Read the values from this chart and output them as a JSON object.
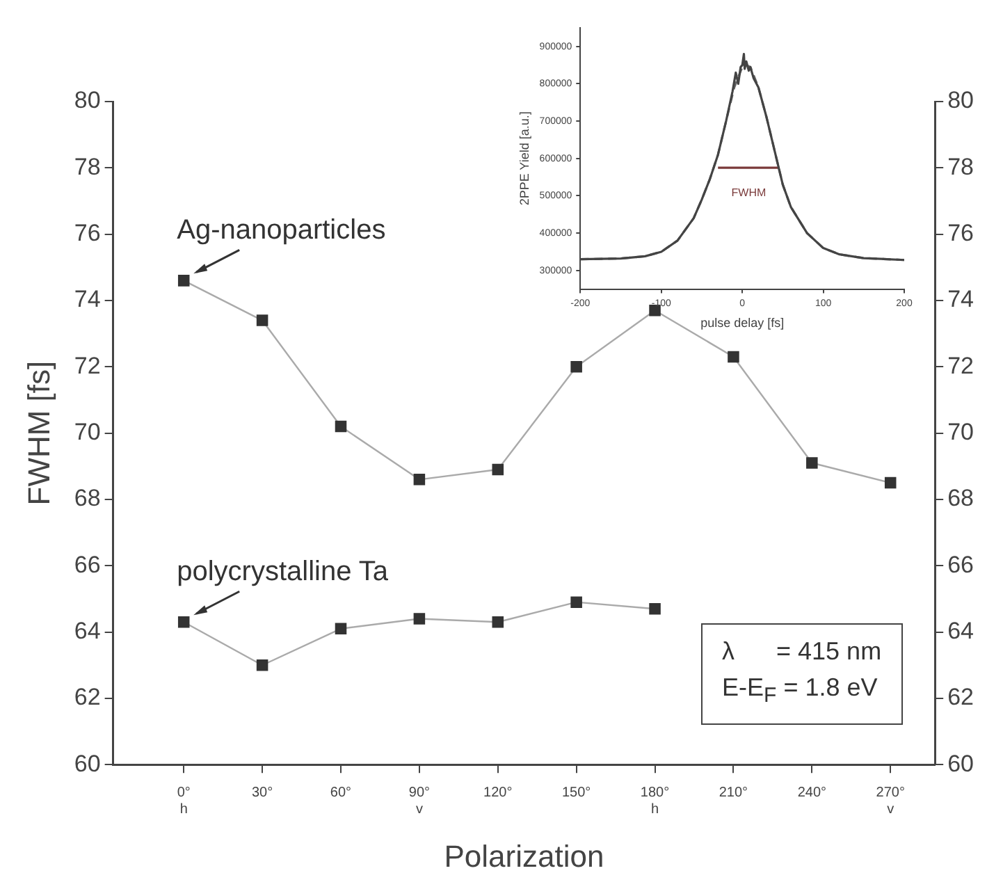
{
  "chart_data": [
    {
      "type": "line",
      "xlabel": "Polarization",
      "ylabel": "FWHM [fs]",
      "x": [
        0,
        30,
        60,
        90,
        120,
        150,
        180,
        210,
        240,
        270
      ],
      "xlim": [
        -27,
        287
      ],
      "xticks": [
        {
          "value": 0,
          "label": "0°\nh"
        },
        {
          "value": 30,
          "label": "30°"
        },
        {
          "value": 60,
          "label": "60°"
        },
        {
          "value": 90,
          "label": "90°\nv"
        },
        {
          "value": 120,
          "label": "120°"
        },
        {
          "value": 150,
          "label": "150°"
        },
        {
          "value": 180,
          "label": "180°\nh"
        },
        {
          "value": 210,
          "label": "210°"
        },
        {
          "value": 240,
          "label": "240°"
        },
        {
          "value": 270,
          "label": "270°\nv"
        }
      ],
      "ylim": [
        60,
        80
      ],
      "yticks": [
        60,
        62,
        64,
        66,
        68,
        70,
        72,
        74,
        76,
        78,
        80
      ],
      "y2lim": [
        60,
        80
      ],
      "y2ticks": [
        60,
        62,
        64,
        66,
        68,
        70,
        72,
        74,
        76,
        78,
        80
      ],
      "marker": "square",
      "grid": false,
      "legend": false,
      "series": [
        {
          "color": "#333333",
          "values": [
            74.6,
            73.4,
            70.2,
            68.6,
            68.9,
            72.0,
            73.7,
            72.3,
            69.1,
            68.5
          ]
        },
        {
          "color": "#333333",
          "values": [
            64.3,
            63.0,
            64.1,
            64.4,
            64.3,
            64.9,
            64.7,
            null,
            null,
            null
          ]
        }
      ],
      "annotations": [
        "Ag-nanoparticles",
        "polycrystalline Ta",
        "λ      = 415 nm",
        "E-E$_{F}$ = 1.8 eV"
      ]
    },
    {
      "type": "line",
      "xlabel": "pulse delay [fs]",
      "ylabel": "2PPE Yield [a.u.]",
      "xlim": [
        -200,
        200
      ],
      "xticks": [
        -200,
        -100,
        0,
        100,
        200
      ],
      "ylim": [
        250000,
        950000
      ],
      "yticks": [
        300000,
        400000,
        500000,
        600000,
        700000,
        800000,
        900000
      ],
      "marker": "none",
      "grid": false,
      "legend": false,
      "series": [
        {
          "color": "#444444",
          "line_style": "solid",
          "x": [
            -200,
            -150,
            -120,
            -100,
            -80,
            -60,
            -50,
            -40,
            -30,
            -20,
            -12,
            -8,
            -5,
            -2,
            0,
            2,
            3,
            5,
            8,
            10,
            14,
            20,
            30,
            40,
            50,
            60,
            80,
            100,
            120,
            150,
            200
          ],
          "values": [
            330000,
            332000,
            338000,
            350000,
            380000,
            440000,
            490000,
            545000,
            610000,
            700000,
            780000,
            830000,
            800000,
            845000,
            850000,
            880000,
            840000,
            860000,
            835000,
            845000,
            815000,
            790000,
            710000,
            620000,
            530000,
            470000,
            400000,
            360000,
            343000,
            333000,
            328000
          ]
        },
        {
          "color": "#666666",
          "line_style": "dashed",
          "x": [
            -200,
            -150,
            -120,
            -100,
            -80,
            -60,
            -50,
            -40,
            -30,
            -20,
            -10,
            0,
            5,
            10,
            20,
            30,
            40,
            50,
            60,
            80,
            100,
            120,
            150,
            200
          ],
          "values": [
            330000,
            332000,
            338000,
            350000,
            380000,
            440000,
            490000,
            545000,
            610000,
            700000,
            790000,
            845000,
            850000,
            845000,
            790000,
            710000,
            620000,
            530000,
            470000,
            400000,
            360000,
            343000,
            333000,
            328000
          ]
        },
        {
          "color": "#7a3a3a",
          "line_style": "solid",
          "x": [
            -30,
            46
          ],
          "values": [
            575000,
            575000
          ]
        }
      ],
      "annotations": [
        {
          "text": "FWHM",
          "x": 8,
          "y": 575000
        }
      ]
    }
  ]
}
